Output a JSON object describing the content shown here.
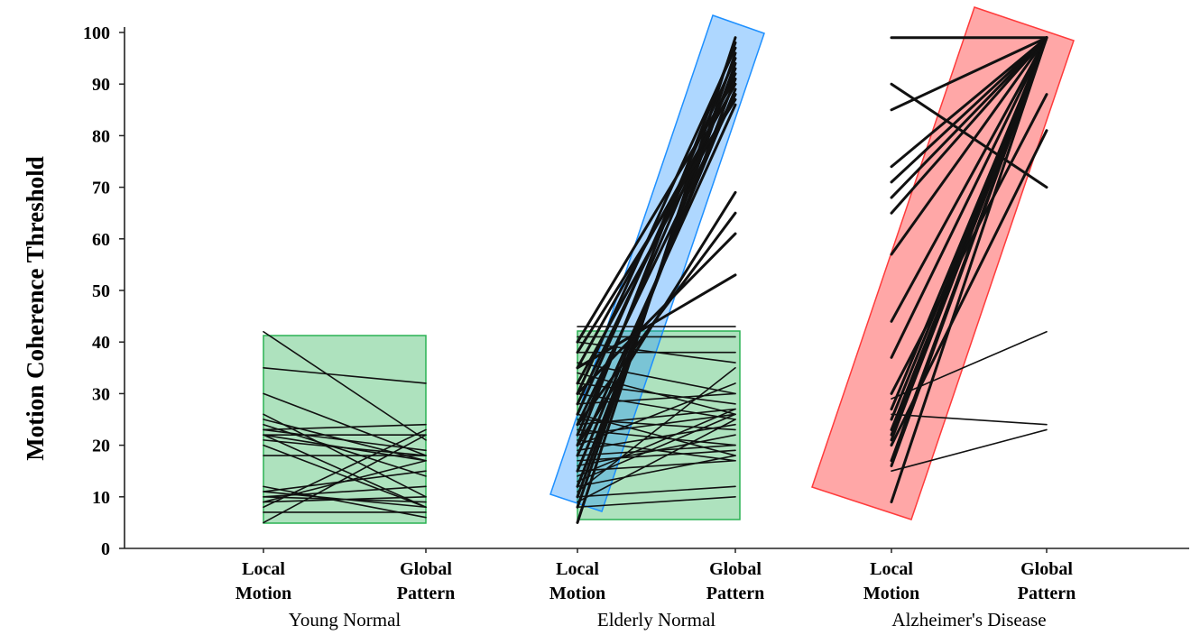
{
  "chart_data": {
    "type": "line",
    "ylabel": "Motion Coherence Threshold",
    "ylim": [
      0,
      100
    ],
    "yticks": [
      0,
      10,
      20,
      30,
      40,
      50,
      60,
      70,
      80,
      90,
      100
    ],
    "categories": [
      "Local Motion",
      "Global Pattern"
    ],
    "category_labels": [
      {
        "line1": "Local",
        "line2": "Motion"
      },
      {
        "line1": "Global",
        "line2": "Pattern"
      }
    ],
    "groups": [
      {
        "name": "Young Normal",
        "pairs": [
          [
            42,
            21
          ],
          [
            35,
            32
          ],
          [
            30,
            18
          ],
          [
            26,
            10
          ],
          [
            25,
            17
          ],
          [
            24,
            14
          ],
          [
            23,
            19
          ],
          [
            23,
            24
          ],
          [
            22,
            22
          ],
          [
            22,
            17
          ],
          [
            22,
            8
          ],
          [
            21,
            18
          ],
          [
            20,
            8
          ],
          [
            18,
            18
          ],
          [
            12,
            6
          ],
          [
            11,
            8
          ],
          [
            11,
            15
          ],
          [
            10,
            12
          ],
          [
            10,
            9
          ],
          [
            9,
            17
          ],
          [
            9,
            10
          ],
          [
            8,
            23
          ],
          [
            7,
            7
          ],
          [
            5,
            22
          ]
        ]
      },
      {
        "name": "Elderly Normal",
        "pairs": [
          [
            5,
            99
          ],
          [
            8,
            96
          ],
          [
            10,
            94
          ],
          [
            12,
            91
          ],
          [
            15,
            89
          ],
          [
            18,
            86
          ],
          [
            20,
            98
          ],
          [
            22,
            93
          ],
          [
            24,
            88
          ],
          [
            26,
            95
          ],
          [
            28,
            92
          ],
          [
            30,
            97
          ],
          [
            32,
            88
          ],
          [
            35,
            90
          ],
          [
            38,
            87
          ],
          [
            40,
            91
          ],
          [
            20,
            69
          ],
          [
            24,
            65
          ],
          [
            30,
            61
          ],
          [
            35,
            53
          ],
          [
            43,
            43
          ],
          [
            41,
            41
          ],
          [
            40,
            36
          ],
          [
            38,
            38
          ],
          [
            36,
            30
          ],
          [
            34,
            26
          ],
          [
            32,
            28
          ],
          [
            30,
            25
          ],
          [
            28,
            30
          ],
          [
            26,
            18
          ],
          [
            25,
            23
          ],
          [
            24,
            27
          ],
          [
            23,
            20
          ],
          [
            22,
            26
          ],
          [
            21,
            17
          ],
          [
            20,
            32
          ],
          [
            19,
            24
          ],
          [
            18,
            20
          ],
          [
            17,
            19
          ],
          [
            16,
            22
          ],
          [
            15,
            17
          ],
          [
            14,
            27
          ],
          [
            13,
            26
          ],
          [
            12,
            18
          ],
          [
            11,
            35
          ],
          [
            10,
            12
          ],
          [
            9,
            25
          ],
          [
            8,
            10
          ]
        ]
      },
      {
        "name": "Alzheimer's Disease",
        "pairs": [
          [
            99,
            99
          ],
          [
            90,
            70
          ],
          [
            85,
            99
          ],
          [
            74,
            99
          ],
          [
            71,
            99
          ],
          [
            68,
            99
          ],
          [
            65,
            99
          ],
          [
            57,
            99
          ],
          [
            44,
            99
          ],
          [
            37,
            99
          ],
          [
            27,
            99
          ],
          [
            25,
            99
          ],
          [
            23,
            99
          ],
          [
            22,
            99
          ],
          [
            21,
            99
          ],
          [
            17,
            99
          ],
          [
            16,
            99
          ],
          [
            9,
            99
          ],
          [
            20,
            81
          ],
          [
            30,
            88
          ],
          [
            29,
            42
          ],
          [
            26,
            24
          ],
          [
            15,
            23
          ]
        ]
      }
    ],
    "highlight_boxes": [
      {
        "name": "young-normal-box",
        "color": "#2ab253"
      },
      {
        "name": "elderly-normal-flat-box",
        "color": "#2ab253"
      },
      {
        "name": "elderly-normal-rising-box",
        "color": "#1e90ff"
      },
      {
        "name": "alzheimers-rising-box",
        "color": "#ff3b3b"
      }
    ]
  }
}
